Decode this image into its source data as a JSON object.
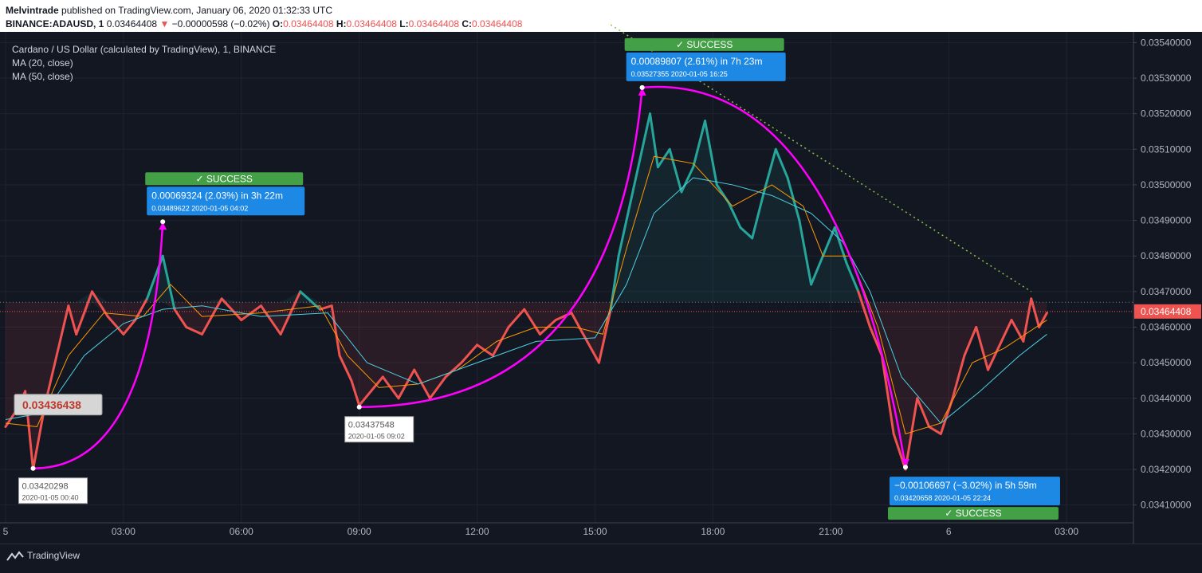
{
  "header": {
    "publisher": "Melvintrade",
    "published_text": "published on TradingView.com, January 06, 2020 01:32:33 UTC",
    "symbol": "BINANCE:ADAUSD, 1",
    "last": "0.03464408",
    "change": "−0.00000598 (−0.02%)",
    "o_label": "O:",
    "o_val": "0.03464408",
    "h_label": "H:",
    "h_val": "0.03464408",
    "l_label": "L:",
    "l_val": "0.03464408",
    "c_label": "C:",
    "c_val": "0.03464408"
  },
  "legend": {
    "title": "Cardano / US Dollar (calculated by TradingView), 1, BINANCE",
    "ma20": "MA (20, close)",
    "ma50": "MA (50, close)"
  },
  "footer": {
    "brand": "TradingView"
  },
  "colors": {
    "up": "#26a69a",
    "down": "#ef5350",
    "ma20": "#ff9800",
    "ma50": "#4dd0e1",
    "magenta": "#ff00ff",
    "blue_label": "#1e88e5",
    "green_badge": "#43a047",
    "price_tag": "#ef5350"
  },
  "chart_data": {
    "type": "line",
    "ylim": [
      0.03405,
      0.03543
    ],
    "y_ticks": [
      "0.03410000",
      "0.03420000",
      "0.03430000",
      "0.03440000",
      "0.03450000",
      "0.03460000",
      "0.03470000",
      "0.03480000",
      "0.03490000",
      "0.03500000",
      "0.03510000",
      "0.03520000",
      "0.03530000",
      "0.03540000"
    ],
    "y_tick_values": [
      0.0341,
      0.0342,
      0.0343,
      0.0344,
      0.0345,
      0.0346,
      0.0347,
      0.0348,
      0.0349,
      0.035,
      0.0351,
      0.0352,
      0.0353,
      0.0354
    ],
    "x_ticks": [
      "5",
      "03:00",
      "06:00",
      "09:00",
      "12:00",
      "15:00",
      "18:00",
      "21:00",
      "6",
      "03:00"
    ],
    "x_tick_hours": [
      0,
      3,
      6,
      9,
      12,
      15,
      18,
      21,
      24,
      27
    ],
    "xlim_hours": [
      0,
      28.8
    ],
    "baseline": 0.03467,
    "last_price": 0.03464408,
    "last_price_label": "0.03464408",
    "series": [
      {
        "name": "price",
        "points": [
          [
            0,
            0.03432
          ],
          [
            0.3,
            0.03437
          ],
          [
            0.5,
            0.03442
          ],
          [
            0.7,
            0.0342
          ],
          [
            1.0,
            0.03438
          ],
          [
            1.3,
            0.03452
          ],
          [
            1.6,
            0.03466
          ],
          [
            1.8,
            0.03458
          ],
          [
            2.2,
            0.0347
          ],
          [
            2.6,
            0.03463
          ],
          [
            3.0,
            0.03458
          ],
          [
            3.3,
            0.03462
          ],
          [
            3.6,
            0.03468
          ],
          [
            4.0,
            0.0348
          ],
          [
            4.3,
            0.03465
          ],
          [
            4.6,
            0.0346
          ],
          [
            5.0,
            0.03458
          ],
          [
            5.5,
            0.03468
          ],
          [
            6.0,
            0.03462
          ],
          [
            6.5,
            0.03466
          ],
          [
            7.0,
            0.03458
          ],
          [
            7.5,
            0.0347
          ],
          [
            8.0,
            0.03465
          ],
          [
            8.3,
            0.03466
          ],
          [
            8.5,
            0.03452
          ],
          [
            8.8,
            0.03445
          ],
          [
            9.0,
            0.03438
          ],
          [
            9.3,
            0.03442
          ],
          [
            9.6,
            0.03446
          ],
          [
            10.0,
            0.0344
          ],
          [
            10.4,
            0.03448
          ],
          [
            10.8,
            0.0344
          ],
          [
            11.2,
            0.03446
          ],
          [
            11.6,
            0.0345
          ],
          [
            12.0,
            0.03455
          ],
          [
            12.4,
            0.03452
          ],
          [
            12.8,
            0.0346
          ],
          [
            13.2,
            0.03465
          ],
          [
            13.6,
            0.03458
          ],
          [
            14.0,
            0.03462
          ],
          [
            14.4,
            0.03464
          ],
          [
            14.8,
            0.03456
          ],
          [
            15.1,
            0.0345
          ],
          [
            15.4,
            0.03465
          ],
          [
            15.6,
            0.0348
          ],
          [
            15.9,
            0.03495
          ],
          [
            16.2,
            0.0351
          ],
          [
            16.4,
            0.0352
          ],
          [
            16.6,
            0.03505
          ],
          [
            16.9,
            0.0351
          ],
          [
            17.2,
            0.03498
          ],
          [
            17.5,
            0.03505
          ],
          [
            17.8,
            0.03518
          ],
          [
            18.1,
            0.035
          ],
          [
            18.4,
            0.03495
          ],
          [
            18.7,
            0.03488
          ],
          [
            19.0,
            0.03485
          ],
          [
            19.3,
            0.03498
          ],
          [
            19.6,
            0.0351
          ],
          [
            19.9,
            0.03502
          ],
          [
            20.2,
            0.0349
          ],
          [
            20.5,
            0.03472
          ],
          [
            20.8,
            0.0348
          ],
          [
            21.1,
            0.03488
          ],
          [
            21.4,
            0.03478
          ],
          [
            21.7,
            0.0347
          ],
          [
            22.0,
            0.0346
          ],
          [
            22.3,
            0.03452
          ],
          [
            22.6,
            0.0343
          ],
          [
            22.9,
            0.0342
          ],
          [
            23.2,
            0.0344
          ],
          [
            23.5,
            0.03432
          ],
          [
            23.8,
            0.0343
          ],
          [
            24.1,
            0.0344
          ],
          [
            24.4,
            0.03452
          ],
          [
            24.7,
            0.0346
          ],
          [
            25.0,
            0.03448
          ],
          [
            25.3,
            0.03455
          ],
          [
            25.6,
            0.03462
          ],
          [
            25.9,
            0.03456
          ],
          [
            26.1,
            0.03468
          ],
          [
            26.3,
            0.0346
          ],
          [
            26.5,
            0.03464
          ]
        ]
      },
      {
        "name": "MA (20, close)",
        "points": [
          [
            0,
            0.03433
          ],
          [
            0.8,
            0.03432
          ],
          [
            1.6,
            0.03452
          ],
          [
            2.5,
            0.03464
          ],
          [
            3.5,
            0.03463
          ],
          [
            4.2,
            0.03472
          ],
          [
            5.0,
            0.03463
          ],
          [
            6.5,
            0.03464
          ],
          [
            8.0,
            0.03466
          ],
          [
            8.7,
            0.03452
          ],
          [
            9.5,
            0.03443
          ],
          [
            10.5,
            0.03444
          ],
          [
            11.5,
            0.03448
          ],
          [
            12.5,
            0.03456
          ],
          [
            13.5,
            0.0346
          ],
          [
            14.5,
            0.0346
          ],
          [
            15.2,
            0.03458
          ],
          [
            15.8,
            0.03482
          ],
          [
            16.5,
            0.03508
          ],
          [
            17.5,
            0.03506
          ],
          [
            18.5,
            0.03494
          ],
          [
            19.5,
            0.035
          ],
          [
            20.3,
            0.03494
          ],
          [
            20.8,
            0.0348
          ],
          [
            21.5,
            0.0348
          ],
          [
            22.2,
            0.0346
          ],
          [
            22.9,
            0.0343
          ],
          [
            23.8,
            0.03433
          ],
          [
            24.6,
            0.0345
          ],
          [
            25.4,
            0.03454
          ],
          [
            26.5,
            0.03462
          ]
        ]
      },
      {
        "name": "MA (50, close)",
        "points": [
          [
            0,
            0.03434
          ],
          [
            1.0,
            0.03436
          ],
          [
            2.0,
            0.03452
          ],
          [
            3.0,
            0.03461
          ],
          [
            4.0,
            0.03465
          ],
          [
            5.0,
            0.03466
          ],
          [
            6.5,
            0.03463
          ],
          [
            8.2,
            0.03464
          ],
          [
            9.2,
            0.0345
          ],
          [
            10.5,
            0.03444
          ],
          [
            12.0,
            0.0345
          ],
          [
            13.5,
            0.03456
          ],
          [
            15.0,
            0.03457
          ],
          [
            15.8,
            0.03472
          ],
          [
            16.5,
            0.03492
          ],
          [
            17.5,
            0.03502
          ],
          [
            18.5,
            0.035
          ],
          [
            19.5,
            0.03497
          ],
          [
            20.5,
            0.03492
          ],
          [
            21.3,
            0.03484
          ],
          [
            22.0,
            0.0347
          ],
          [
            22.8,
            0.03446
          ],
          [
            23.8,
            0.03433
          ],
          [
            24.8,
            0.03442
          ],
          [
            25.8,
            0.03452
          ],
          [
            26.5,
            0.03458
          ]
        ]
      }
    ],
    "trendline": {
      "from": [
        15.4,
        0.03545
      ],
      "to": [
        26.1,
        0.0347
      ]
    },
    "swings": [
      {
        "from": [
          0.7,
          0.03420298
        ],
        "to": [
          4.0,
          0.03489622
        ]
      },
      {
        "from": [
          9.0,
          0.03437548
        ],
        "to": [
          16.2,
          0.03527355
        ]
      },
      {
        "from": [
          16.2,
          0.03527355
        ],
        "to": [
          22.9,
          0.03420658
        ]
      }
    ],
    "point_labels": [
      {
        "price": "0.03420298",
        "time": "2020-01-05 00:40",
        "at": [
          0.7,
          0.03420298
        ],
        "side": "below"
      },
      {
        "price": "0.03437548",
        "time": "2020-01-05 09:02",
        "at": [
          9.0,
          0.03437548
        ],
        "side": "below"
      },
      {
        "price": "0.03436438",
        "at": [
          0.2,
          0.0344
        ],
        "side": "box"
      }
    ],
    "measurements": [
      {
        "text": "0.00069324 (2.03%) in 3h 22m",
        "price": "0.03489622",
        "time": "2020-01-05  04:02",
        "badge": "SUCCESS",
        "badge_pos": "above",
        "at": [
          4.0,
          0.03489622
        ]
      },
      {
        "text": "0.00089807 (2.61%) in 7h 23m",
        "price": "0.03527355",
        "time": "2020-01-05  16:25",
        "badge": "SUCCESS",
        "badge_pos": "above",
        "at": [
          16.2,
          0.03527355
        ]
      },
      {
        "text": "−0.00106697 (−3.02%) in 5h 59m",
        "price": "0.03420658",
        "time": "2020-01-05  22:24",
        "badge": "SUCCESS",
        "badge_pos": "below",
        "at": [
          22.9,
          0.03420658
        ]
      }
    ]
  }
}
